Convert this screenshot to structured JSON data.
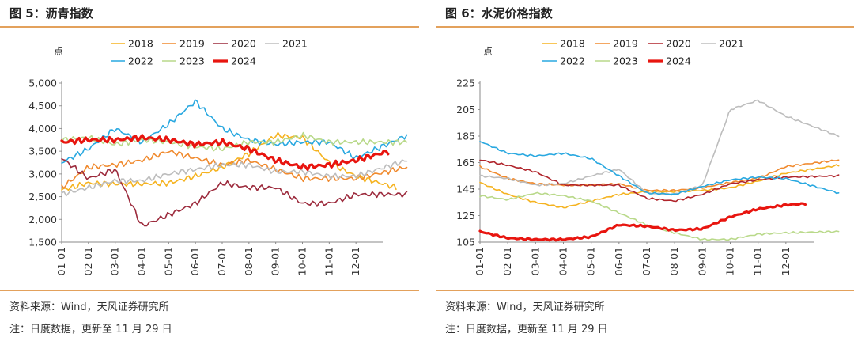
{
  "charts": [
    {
      "title": "图 5：沥青指数",
      "source": "资料来源：Wind，天风证券研究所",
      "note": "注：日度数据，更新至 11 月 29 日"
    },
    {
      "title": "图 6：水泥价格指数",
      "source": "资料来源：Wind，天风证券研究所",
      "note": "注：日度数据，更新至 11 月 29 日"
    }
  ],
  "chart_data": [
    {
      "type": "line",
      "title": "沥青指数",
      "ylabel": "点",
      "xlabel": "",
      "ylim": [
        1500,
        5000
      ],
      "yticks": [
        "5,000",
        "4,500",
        "4,000",
        "3,500",
        "3,000",
        "2,500",
        "2,000",
        "1,500"
      ],
      "ytick_values": [
        5000,
        4500,
        4000,
        3500,
        3000,
        2500,
        2000,
        1500
      ],
      "x": [
        "01-01",
        "02-01",
        "03-01",
        "04-01",
        "05-01",
        "06-01",
        "07-01",
        "08-01",
        "09-01",
        "10-01",
        "11-01",
        "12-01"
      ],
      "series": [
        {
          "name": "2018",
          "color": "#f5b320",
          "width": 1.6,
          "values": [
            2650,
            2800,
            2780,
            2780,
            2800,
            2950,
            3150,
            3450,
            3850,
            3800,
            3250,
            2950
          ],
          "end": [
            12.5,
            2700
          ]
        },
        {
          "name": "2019",
          "color": "#f08a2e",
          "width": 1.6,
          "values": [
            2700,
            3150,
            3200,
            3300,
            3500,
            3350,
            3200,
            3300,
            3100,
            2900,
            2900,
            2900
          ],
          "end": [
            12.9,
            3150
          ]
        },
        {
          "name": "2020",
          "color": "#9c2a3c",
          "width": 1.6,
          "values": [
            3350,
            2900,
            3100,
            1850,
            2100,
            2350,
            2800,
            2700,
            2700,
            2350,
            2350,
            2550
          ],
          "end": [
            12.9,
            2550
          ]
        },
        {
          "name": "2021",
          "color": "#bdbdbd",
          "width": 1.6,
          "values": [
            2550,
            2700,
            2850,
            2850,
            3000,
            3100,
            3200,
            3200,
            3050,
            3050,
            2950,
            2950
          ],
          "end": [
            12.9,
            3300
          ]
        },
        {
          "name": "2022",
          "color": "#29a8e0",
          "width": 1.6,
          "values": [
            3250,
            3550,
            4000,
            3700,
            4100,
            4600,
            4000,
            3750,
            3650,
            3700,
            3700,
            3350
          ],
          "end": [
            12.9,
            3850
          ]
        },
        {
          "name": "2023",
          "color": "#b9d98a",
          "width": 1.6,
          "values": [
            3750,
            3800,
            3650,
            3750,
            3700,
            3600,
            3550,
            3700,
            3700,
            3850,
            3700,
            3700
          ],
          "end": [
            12.9,
            3700
          ]
        },
        {
          "name": "2024",
          "color": "#e8150f",
          "width": 3.2,
          "values": [
            3700,
            3750,
            3750,
            3800,
            3750,
            3650,
            3700,
            3550,
            3300,
            3150,
            3200,
            3300
          ],
          "end": [
            12.2,
            3500
          ]
        }
      ]
    },
    {
      "type": "line",
      "title": "水泥价格指数",
      "ylabel": "点",
      "xlabel": "",
      "ylim": [
        105,
        225
      ],
      "yticks": [
        "225",
        "205",
        "185",
        "165",
        "145",
        "125",
        "105"
      ],
      "ytick_values": [
        225,
        205,
        185,
        165,
        145,
        125,
        105
      ],
      "x": [
        "01-01",
        "02-01",
        "03-01",
        "04-01",
        "05-01",
        "06-01",
        "07-01",
        "08-01",
        "09-01",
        "10-01",
        "11-01",
        "12-01"
      ],
      "series": [
        {
          "name": "2018",
          "color": "#f5b320",
          "width": 1.6,
          "values": [
            150,
            141,
            135,
            131,
            136,
            141,
            143,
            143,
            144,
            146,
            151,
            157
          ],
          "end": [
            12.9,
            163
          ]
        },
        {
          "name": "2019",
          "color": "#f08a2e",
          "width": 1.6,
          "values": [
            162,
            153,
            149,
            148,
            148,
            149,
            144,
            144,
            146,
            150,
            153,
            162
          ],
          "end": [
            12.9,
            167
          ]
        },
        {
          "name": "2020",
          "color": "#b0242b",
          "width": 1.6,
          "values": [
            167,
            163,
            158,
            148,
            148,
            148,
            138,
            136,
            141,
            149,
            152,
            154
          ],
          "end": [
            12.9,
            155
          ]
        },
        {
          "name": "2021",
          "color": "#bdbdbd",
          "width": 1.6,
          "values": [
            155,
            153,
            148,
            149,
            155,
            160,
            142,
            141,
            148,
            205,
            212,
            200
          ],
          "end": [
            12.9,
            185
          ]
        },
        {
          "name": "2022",
          "color": "#29a8e0",
          "width": 1.6,
          "values": [
            181,
            172,
            170,
            172,
            168,
            155,
            142,
            141,
            147,
            152,
            154,
            153
          ],
          "end": [
            12.9,
            142
          ]
        },
        {
          "name": "2023",
          "color": "#b9d98a",
          "width": 1.6,
          "values": [
            140,
            137,
            142,
            140,
            136,
            127,
            118,
            112,
            107,
            107,
            111,
            112
          ],
          "end": [
            12.9,
            113
          ]
        },
        {
          "name": "2024",
          "color": "#e8150f",
          "width": 3.2,
          "values": [
            113,
            108,
            107,
            107,
            109,
            118,
            117,
            114,
            115,
            124,
            130,
            133
          ],
          "end": [
            11.7,
            134
          ]
        }
      ]
    }
  ]
}
